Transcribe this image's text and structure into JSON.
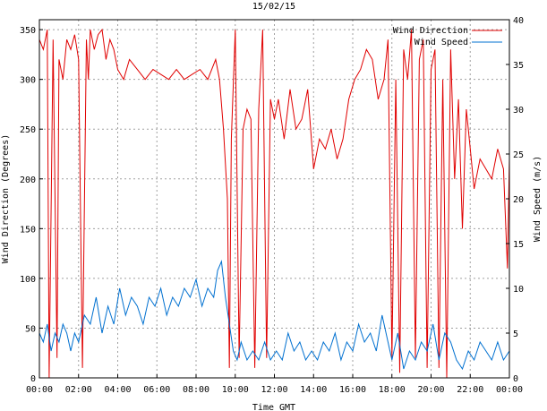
{
  "chart_data": {
    "type": "line",
    "title": "15/02/15",
    "xlabel": "Time GMT",
    "ylabel_left": "Wind Direction (Degrees)",
    "ylabel_right": "Wind Speed (m/s)",
    "x_ticks": [
      "00:00",
      "02:00",
      "04:00",
      "06:00",
      "08:00",
      "10:00",
      "12:00",
      "14:00",
      "16:00",
      "18:00",
      "20:00",
      "22:00",
      "00:00"
    ],
    "y_left_ticks": [
      0,
      50,
      100,
      150,
      200,
      250,
      300,
      350
    ],
    "y_right_ticks": [
      0,
      5,
      10,
      15,
      20,
      25,
      30,
      35,
      40
    ],
    "xlim_hours": [
      0,
      24
    ],
    "ylim_left": [
      0,
      360
    ],
    "ylim_right": [
      0,
      40
    ],
    "grid": true,
    "legend_position": "top-right",
    "series": [
      {
        "name": "Wind Direction",
        "axis": "left",
        "color": "#e00000",
        "x": [
          0,
          0.2,
          0.4,
          0.5,
          0.7,
          0.9,
          1.0,
          1.2,
          1.4,
          1.6,
          1.8,
          2.0,
          2.2,
          2.4,
          2.5,
          2.6,
          2.8,
          3.0,
          3.2,
          3.4,
          3.6,
          3.8,
          4.0,
          4.3,
          4.6,
          5.0,
          5.4,
          5.8,
          6.2,
          6.6,
          7.0,
          7.4,
          7.8,
          8.2,
          8.6,
          9.0,
          9.2,
          9.4,
          9.6,
          9.7,
          9.8,
          10.0,
          10.2,
          10.4,
          10.6,
          10.8,
          11.0,
          11.2,
          11.4,
          11.6,
          11.8,
          12.0,
          12.2,
          12.5,
          12.8,
          13.1,
          13.4,
          13.7,
          14.0,
          14.3,
          14.6,
          14.9,
          15.2,
          15.5,
          15.8,
          16.1,
          16.4,
          16.7,
          17.0,
          17.3,
          17.6,
          17.8,
          18.0,
          18.2,
          18.4,
          18.6,
          18.8,
          19.0,
          19.2,
          19.4,
          19.6,
          19.8,
          20.0,
          20.2,
          20.4,
          20.6,
          20.8,
          21.0,
          21.2,
          21.4,
          21.6,
          21.8,
          22.0,
          22.2,
          22.5,
          22.8,
          23.1,
          23.4,
          23.7,
          23.9,
          24.0
        ],
        "values": [
          340,
          330,
          350,
          0,
          340,
          20,
          320,
          300,
          340,
          330,
          345,
          320,
          10,
          340,
          300,
          350,
          330,
          345,
          350,
          320,
          340,
          330,
          310,
          300,
          320,
          310,
          300,
          310,
          305,
          300,
          310,
          300,
          305,
          310,
          300,
          320,
          300,
          250,
          180,
          10,
          240,
          350,
          20,
          250,
          270,
          260,
          10,
          270,
          350,
          20,
          280,
          260,
          280,
          240,
          290,
          250,
          260,
          290,
          210,
          240,
          230,
          250,
          220,
          240,
          280,
          300,
          310,
          330,
          320,
          280,
          300,
          340,
          20,
          300,
          5,
          330,
          300,
          350,
          20,
          320,
          340,
          10,
          310,
          330,
          10,
          300,
          0,
          330,
          200,
          280,
          150,
          270,
          230,
          190,
          220,
          210,
          200,
          230,
          210,
          110,
          220
        ]
      },
      {
        "name": "Wind Speed",
        "axis": "right",
        "color": "#0070d0",
        "x": [
          0,
          0.2,
          0.4,
          0.6,
          0.8,
          1.0,
          1.2,
          1.4,
          1.6,
          1.8,
          2.0,
          2.3,
          2.6,
          2.9,
          3.2,
          3.5,
          3.8,
          4.1,
          4.4,
          4.7,
          5.0,
          5.3,
          5.6,
          5.9,
          6.2,
          6.5,
          6.8,
          7.1,
          7.4,
          7.7,
          8.0,
          8.3,
          8.6,
          8.9,
          9.1,
          9.3,
          9.5,
          9.7,
          9.9,
          10.1,
          10.3,
          10.6,
          10.9,
          11.2,
          11.5,
          11.8,
          12.1,
          12.4,
          12.7,
          13.0,
          13.3,
          13.6,
          13.9,
          14.2,
          14.5,
          14.8,
          15.1,
          15.4,
          15.7,
          16.0,
          16.3,
          16.6,
          16.9,
          17.2,
          17.5,
          17.8,
          18.0,
          18.3,
          18.6,
          18.9,
          19.2,
          19.5,
          19.8,
          20.1,
          20.4,
          20.7,
          21.0,
          21.3,
          21.6,
          21.9,
          22.2,
          22.5,
          22.8,
          23.1,
          23.4,
          23.7,
          24.0
        ],
        "values": [
          5,
          4,
          6,
          3,
          5,
          4,
          6,
          5,
          3,
          5,
          4,
          7,
          6,
          9,
          5,
          8,
          6,
          10,
          7,
          9,
          8,
          6,
          9,
          8,
          10,
          7,
          9,
          8,
          10,
          9,
          11,
          8,
          10,
          9,
          12,
          13,
          9,
          6,
          3,
          2,
          4,
          2,
          3,
          2,
          4,
          2,
          3,
          2,
          5,
          3,
          4,
          2,
          3,
          2,
          4,
          3,
          5,
          2,
          4,
          3,
          6,
          4,
          5,
          3,
          7,
          4,
          2,
          5,
          1,
          3,
          2,
          4,
          3,
          6,
          2,
          5,
          4,
          2,
          1,
          3,
          2,
          4,
          3,
          2,
          4,
          2,
          3
        ]
      }
    ]
  }
}
